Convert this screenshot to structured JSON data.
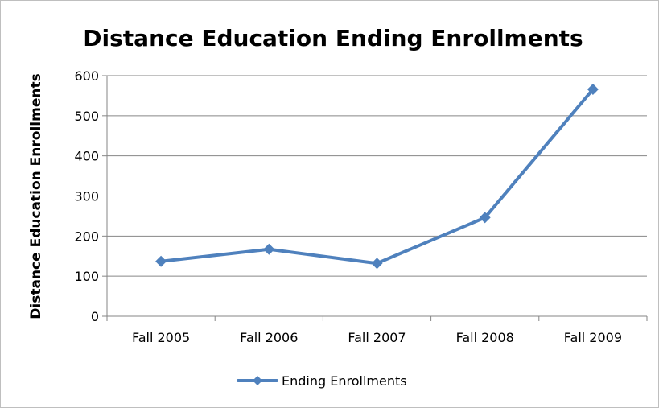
{
  "chart_data": {
    "type": "line",
    "title": "Distance Education Ending Enrollments",
    "xlabel": "",
    "ylabel": "Distance Education Enrollments",
    "categories": [
      "Fall 2005",
      "Fall 2006",
      "Fall 2007",
      "Fall 2008",
      "Fall 2009"
    ],
    "series": [
      {
        "name": "Ending Enrollments",
        "values": [
          137,
          167,
          132,
          246,
          566
        ],
        "color": "#4f81bd"
      }
    ],
    "ylim": [
      0,
      600
    ],
    "yticks": [
      "0",
      "100",
      "200",
      "300",
      "400",
      "500",
      "600"
    ],
    "grid": true,
    "legend": "bottom"
  }
}
